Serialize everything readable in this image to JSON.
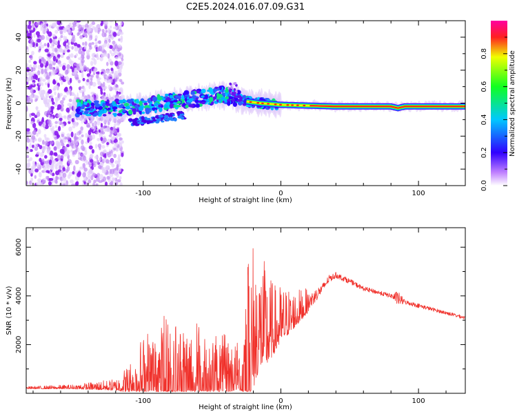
{
  "title": "C2E5.2024.016.07.09.G31",
  "chart_data": [
    {
      "type": "heatmap",
      "xlabel": "Height of straight line (km)",
      "ylabel": "Frequency (Hz)",
      "xlim": [
        -185,
        134
      ],
      "ylim": [
        -50,
        50
      ],
      "xticks": [
        -100,
        0,
        100
      ],
      "yticks": [
        -40,
        -20,
        0,
        20,
        40
      ],
      "colorbar": {
        "label": "Normalized spectral amplitude",
        "range": [
          0,
          1
        ],
        "ticks": [
          0.0,
          0.2,
          0.4,
          0.6,
          0.8
        ],
        "tick_labels": [
          "0.0",
          "0.2",
          "0.4",
          "0.6",
          "0.8"
        ]
      },
      "ridge": {
        "x": [
          -145,
          -120,
          -100,
          -80,
          -60,
          -45,
          -35,
          -25,
          -15,
          0,
          20,
          40,
          60,
          80,
          85,
          90,
          100,
          134
        ],
        "freq": [
          -3,
          -3,
          -2,
          1,
          3,
          5,
          4,
          1,
          0,
          -1,
          -1.5,
          -2,
          -2,
          -2,
          -3,
          -2,
          -2,
          -2
        ]
      },
      "noise_region_x": [
        -185,
        -115
      ]
    },
    {
      "type": "line",
      "xlabel": "Height of straight line (km)",
      "ylabel": "SNR (10 * v/v)",
      "xlim": [
        -185,
        134
      ],
      "ylim": [
        0,
        6800
      ],
      "xticks": [
        -100,
        0,
        100
      ],
      "yticks": [
        2000,
        4000,
        6000
      ],
      "color": "#f0302a",
      "envelope": {
        "x": [
          -185,
          -150,
          -120,
          -110,
          -100,
          -90,
          -80,
          -70,
          -60,
          -50,
          -40,
          -30,
          -25,
          -20,
          -15,
          -10,
          -5,
          0,
          10,
          20,
          30,
          35,
          40,
          50,
          60,
          70,
          80,
          85,
          90,
          100,
          110,
          120,
          134
        ],
        "base": [
          220,
          250,
          300,
          500,
          900,
          900,
          900,
          900,
          900,
          900,
          900,
          900,
          1500,
          2600,
          2900,
          2700,
          2700,
          3000,
          3300,
          3700,
          4300,
          4700,
          4850,
          4600,
          4300,
          4150,
          4000,
          3900,
          3750,
          3600,
          3450,
          3300,
          3100
        ],
        "spike": [
          60,
          120,
          300,
          800,
          1600,
          2200,
          2400,
          2300,
          2100,
          1800,
          1500,
          1200,
          4500,
          4000,
          3000,
          2500,
          1800,
          1500,
          1000,
          600,
          300,
          250,
          200,
          180,
          150,
          150,
          150,
          500,
          150,
          150,
          120,
          120,
          120
        ]
      }
    }
  ]
}
